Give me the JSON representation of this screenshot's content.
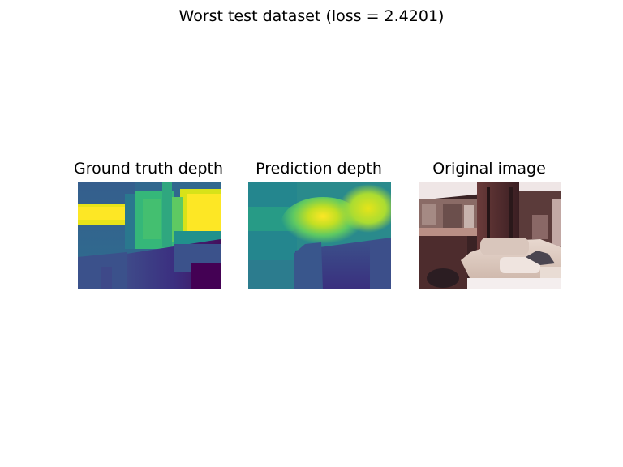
{
  "figure": {
    "title": "Worst test dataset (loss = 2.4201)"
  },
  "panels": [
    {
      "title": "Ground truth depth",
      "kind": "depth-map",
      "colormap": "viridis"
    },
    {
      "title": "Prediction depth",
      "kind": "depth-map",
      "colormap": "viridis"
    },
    {
      "title": "Original image",
      "kind": "rgb-photo"
    }
  ]
}
